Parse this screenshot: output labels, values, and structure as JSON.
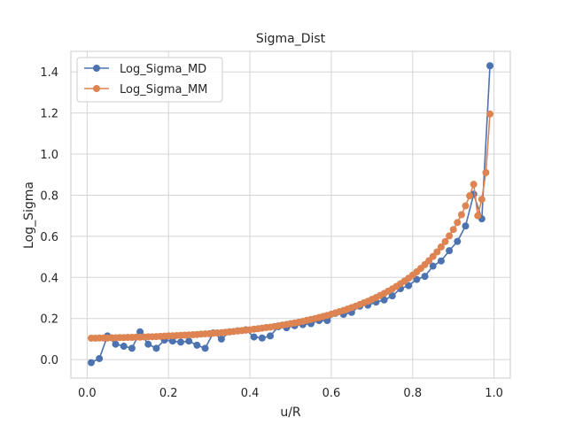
{
  "chart_data": {
    "type": "line",
    "title": "Sigma_Dist",
    "xlabel": "u/R",
    "ylabel": "Log_Sigma",
    "xlim": [
      -0.04,
      1.04
    ],
    "ylim": [
      -0.09,
      1.5
    ],
    "xticks": [
      0.0,
      0.2,
      0.4,
      0.6,
      0.8,
      1.0
    ],
    "xtick_labels": [
      "0.0",
      "0.2",
      "0.4",
      "0.6",
      "0.8",
      "1.0"
    ],
    "yticks": [
      0.0,
      0.2,
      0.4,
      0.6,
      0.8,
      1.0,
      1.2,
      1.4
    ],
    "ytick_labels": [
      "0.0",
      "0.2",
      "0.4",
      "0.6",
      "0.8",
      "1.0",
      "1.2",
      "1.4"
    ],
    "grid": true,
    "legend_position": "top-left",
    "series": [
      {
        "name": "Log_Sigma_MD",
        "color": "#4c72b0",
        "marker": "circle",
        "x": [
          0.01,
          0.03,
          0.05,
          0.07,
          0.09,
          0.11,
          0.13,
          0.15,
          0.17,
          0.19,
          0.21,
          0.23,
          0.25,
          0.27,
          0.29,
          0.31,
          0.33,
          0.35,
          0.37,
          0.39,
          0.41,
          0.43,
          0.45,
          0.47,
          0.49,
          0.51,
          0.53,
          0.55,
          0.57,
          0.59,
          0.61,
          0.63,
          0.65,
          0.67,
          0.69,
          0.71,
          0.73,
          0.75,
          0.77,
          0.79,
          0.81,
          0.83,
          0.85,
          0.87,
          0.89,
          0.91,
          0.93,
          0.95,
          0.97,
          0.99
        ],
        "y": [
          -0.015,
          0.005,
          0.115,
          0.075,
          0.065,
          0.055,
          0.135,
          0.075,
          0.055,
          0.095,
          0.09,
          0.085,
          0.09,
          0.07,
          0.055,
          0.13,
          0.1,
          0.135,
          0.14,
          0.145,
          0.11,
          0.105,
          0.115,
          0.16,
          0.155,
          0.165,
          0.17,
          0.175,
          0.19,
          0.19,
          0.225,
          0.22,
          0.23,
          0.26,
          0.265,
          0.28,
          0.29,
          0.31,
          0.345,
          0.36,
          0.39,
          0.405,
          0.455,
          0.48,
          0.53,
          0.575,
          0.65,
          0.805,
          0.685,
          1.43
        ]
      },
      {
        "name": "Log_Sigma_MM",
        "color": "#dd8452",
        "marker": "circle",
        "x": [
          0.01,
          0.02,
          0.03,
          0.04,
          0.05,
          0.06,
          0.07,
          0.08,
          0.09,
          0.1,
          0.11,
          0.12,
          0.13,
          0.14,
          0.15,
          0.16,
          0.17,
          0.18,
          0.19,
          0.2,
          0.21,
          0.22,
          0.23,
          0.24,
          0.25,
          0.26,
          0.27,
          0.28,
          0.29,
          0.3,
          0.31,
          0.32,
          0.33,
          0.34,
          0.35,
          0.36,
          0.37,
          0.38,
          0.39,
          0.4,
          0.41,
          0.42,
          0.43,
          0.44,
          0.45,
          0.46,
          0.47,
          0.48,
          0.49,
          0.5,
          0.51,
          0.52,
          0.53,
          0.54,
          0.55,
          0.56,
          0.57,
          0.58,
          0.59,
          0.6,
          0.61,
          0.62,
          0.63,
          0.64,
          0.65,
          0.66,
          0.67,
          0.68,
          0.69,
          0.7,
          0.71,
          0.72,
          0.73,
          0.74,
          0.75,
          0.76,
          0.77,
          0.78,
          0.79,
          0.8,
          0.81,
          0.82,
          0.83,
          0.84,
          0.85,
          0.86,
          0.87,
          0.88,
          0.89,
          0.9,
          0.91,
          0.92,
          0.93,
          0.94,
          0.95,
          0.96,
          0.97,
          0.98,
          0.99
        ],
        "y": [
          0.104,
          0.104,
          0.105,
          0.105,
          0.105,
          0.106,
          0.106,
          0.107,
          0.107,
          0.108,
          0.108,
          0.109,
          0.109,
          0.11,
          0.111,
          0.111,
          0.112,
          0.113,
          0.114,
          0.115,
          0.116,
          0.117,
          0.118,
          0.119,
          0.12,
          0.121,
          0.122,
          0.124,
          0.125,
          0.126,
          0.128,
          0.13,
          0.131,
          0.133,
          0.135,
          0.137,
          0.139,
          0.141,
          0.143,
          0.145,
          0.148,
          0.15,
          0.153,
          0.156,
          0.158,
          0.161,
          0.164,
          0.168,
          0.171,
          0.175,
          0.178,
          0.182,
          0.186,
          0.191,
          0.195,
          0.2,
          0.205,
          0.21,
          0.215,
          0.221,
          0.227,
          0.233,
          0.239,
          0.246,
          0.253,
          0.26,
          0.268,
          0.276,
          0.284,
          0.293,
          0.302,
          0.312,
          0.322,
          0.333,
          0.344,
          0.356,
          0.369,
          0.382,
          0.396,
          0.411,
          0.427,
          0.444,
          0.462,
          0.481,
          0.502,
          0.524,
          0.548,
          0.574,
          0.602,
          0.633,
          0.667,
          0.705,
          0.748,
          0.797,
          0.853,
          0.7,
          0.78,
          0.91,
          1.195
        ]
      }
    ]
  }
}
